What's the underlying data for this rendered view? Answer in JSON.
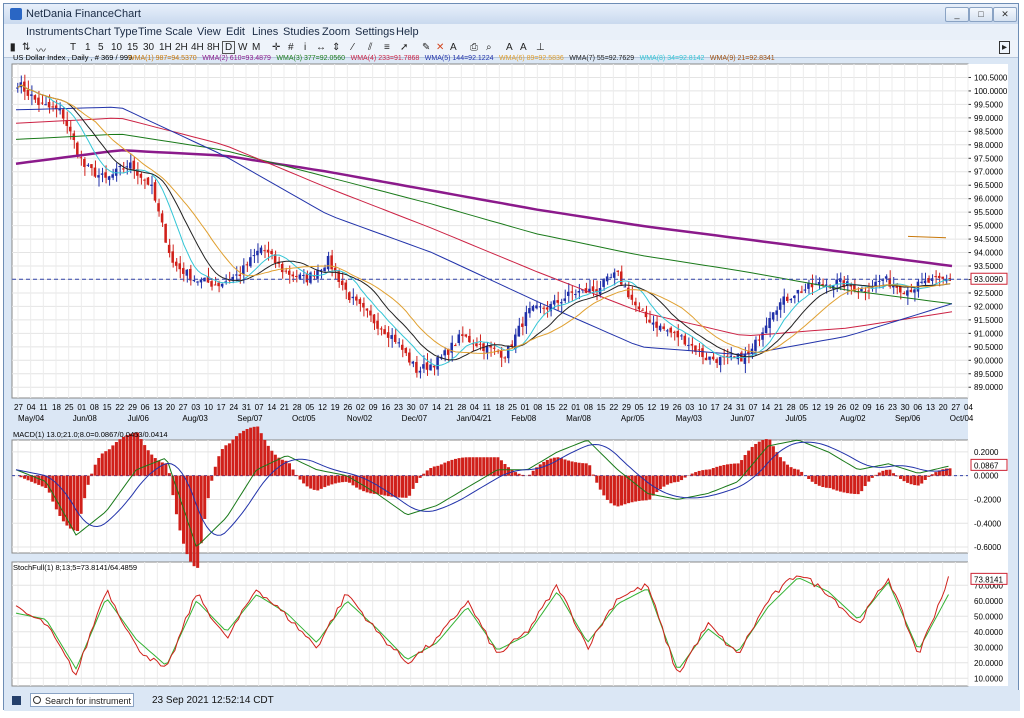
{
  "window": {
    "title": "NetDania FinanceChart",
    "controls": [
      "_",
      "□",
      "✕"
    ]
  },
  "menu": [
    "Instruments",
    "Chart Type",
    "Time Scale",
    "View",
    "Edit",
    "Lines",
    "Studies",
    "Zoom",
    "Settings",
    "Help"
  ],
  "toolbar": {
    "timeframes": [
      "T",
      "1",
      "5",
      "10",
      "15",
      "30",
      "1H",
      "2H",
      "4H",
      "8H",
      "D",
      "W",
      "M"
    ],
    "selected": "D"
  },
  "status": {
    "search_placeholder": "Search for instrument",
    "datetime": "23 Sep 2021 12:52:14 CDT"
  },
  "header": {
    "instrument": "US Dollar Index , Daily , # 369 / 999",
    "indicators": [
      {
        "text": "WMA(1) 987=94.5370",
        "color": "#c8780a"
      },
      {
        "text": "WMA(2) 610=93.4879",
        "color": "#8b1a8b"
      },
      {
        "text": "WMA(3) 377=92.0560",
        "color": "#1a7a1a"
      },
      {
        "text": "WMA(4) 233=91.7868",
        "color": "#cc2244"
      },
      {
        "text": "WMA(5) 144=92.1224",
        "color": "#2233aa"
      },
      {
        "text": "WMA(6) 89=92.5836",
        "color": "#e0a030"
      },
      {
        "text": "WMA(7) 55=92.7629",
        "color": "#222222"
      },
      {
        "text": "WMA(8) 34=92.8142",
        "color": "#33c6d6"
      },
      {
        "text": "WMA(9) 21=92.8341",
        "color": "#a05010"
      }
    ]
  },
  "chart_data": [
    {
      "type": "candlestick",
      "title": "US Dollar Index , Daily",
      "ylim": [
        88.6,
        101.0
      ],
      "y_ticks": [
        "100.5000",
        "100.0000",
        "99.5000",
        "99.0000",
        "98.5000",
        "98.0000",
        "97.5000",
        "97.0000",
        "96.5000",
        "96.0000",
        "95.5000",
        "95.0000",
        "94.5000",
        "94.0000",
        "93.5000",
        "93.0000",
        "92.5000",
        "92.0000",
        "91.5000",
        "91.0000",
        "90.5000",
        "90.0000",
        "89.5000",
        "89.0000"
      ],
      "last_price_label": "93.0090",
      "last_price": 93.009,
      "x_tick_labels": [
        "27",
        "04",
        "11",
        "18",
        "25",
        "01",
        "08",
        "15",
        "22",
        "29",
        "06",
        "13",
        "20",
        "27",
        "03",
        "10",
        "17",
        "24",
        "31",
        "07",
        "14",
        "21",
        "28",
        "05",
        "12",
        "19",
        "26",
        "02",
        "09",
        "16",
        "23",
        "30",
        "07",
        "14",
        "21",
        "28",
        "04",
        "11",
        "18",
        "25",
        "01",
        "08",
        "15",
        "22",
        "01",
        "08",
        "15",
        "22",
        "29",
        "05",
        "12",
        "19",
        "26",
        "03",
        "10",
        "17",
        "24",
        "31",
        "07",
        "14",
        "21",
        "28",
        "05",
        "12",
        "19",
        "26",
        "02",
        "09",
        "16",
        "23",
        "30",
        "06",
        "13",
        "20",
        "27",
        "04"
      ],
      "x_month_labels": [
        "May/04",
        "Jun/08",
        "Jul/06",
        "Aug/03",
        "Sep/07",
        "Oct/05",
        "Nov/02",
        "Dec/07",
        "Jan/04/21",
        "Feb/08",
        "Mar/08",
        "Apr/05",
        "May/03",
        "Jun/07",
        "Jul/05",
        "Aug/02",
        "Sep/06",
        "Oct/04"
      ],
      "close_anchors": [
        100.3,
        99.5,
        99.2,
        97.2,
        96.7,
        97.3,
        96.5,
        93.6,
        93.0,
        92.8,
        93.2,
        94.2,
        93.3,
        93.0,
        93.7,
        92.3,
        91.5,
        90.8,
        89.6,
        90.0,
        90.9,
        90.5,
        90.2,
        91.8,
        92.0,
        92.5,
        92.6,
        93.2,
        91.8,
        91.2,
        90.8,
        90.1,
        90.0,
        90.2,
        91.9,
        92.5,
        92.8,
        92.9,
        92.6,
        93.0,
        92.6,
        92.9,
        93.0
      ],
      "moving_averages": [
        {
          "name": "WMA(1) 987",
          "color": "#c8780a",
          "values": [
            94.6,
            94.55
          ]
        },
        {
          "name": "WMA(2) 610",
          "color": "#8b1a8b",
          "values": [
            97.3,
            97.8,
            97.6,
            97.0,
            96.3,
            95.6,
            95.0,
            94.5,
            94.0,
            93.5
          ]
        },
        {
          "name": "WMA(3) 377",
          "color": "#1a7a1a",
          "values": [
            98.2,
            98.4,
            97.8,
            96.8,
            95.8,
            94.7,
            93.9,
            93.3,
            92.6,
            92.1
          ]
        },
        {
          "name": "WMA(4) 233",
          "color": "#cc2244",
          "values": [
            98.8,
            99.0,
            98.0,
            96.4,
            94.9,
            93.3,
            91.8,
            90.9,
            91.2,
            91.8
          ]
        },
        {
          "name": "WMA(5) 144",
          "color": "#2233aa",
          "values": [
            99.3,
            99.4,
            97.6,
            95.4,
            94.0,
            92.2,
            90.5,
            90.2,
            90.9,
            92.1
          ]
        }
      ]
    },
    {
      "type": "histogram+line",
      "title": "MACD(1) 13.0;21.0;8.0=0.0867/0.0453/0.0414",
      "ylim": [
        -0.65,
        0.3
      ],
      "y_ticks": [
        "0.2000",
        "0.0000",
        "-0.2000",
        "-0.4000",
        "-0.6000"
      ],
      "last_label": "0.0867",
      "macd_anchors": [
        0.05,
        -0.05,
        -0.5,
        -0.3,
        0.05,
        0.15,
        -0.6,
        -0.35,
        0.05,
        0.17,
        0.05,
        0.0,
        -0.15,
        -0.33,
        -0.25,
        -0.1,
        0.05,
        0.05,
        0.2,
        0.3,
        0.05,
        -0.15,
        -0.2,
        -0.15,
        -0.05,
        0.25,
        0.3,
        0.2,
        0.05,
        0.1,
        0.02,
        0.08
      ]
    },
    {
      "type": "line",
      "title": "StochFull(1) 8;13;5=73.8141/64.4859",
      "ylim": [
        5,
        85
      ],
      "y_ticks": [
        "70.0000",
        "60.0000",
        "50.0000",
        "40.0000",
        "30.0000",
        "20.0000",
        "10.0000"
      ],
      "last_label": "73.8141",
      "k_anchors": [
        55,
        45,
        12,
        68,
        30,
        15,
        65,
        35,
        68,
        50,
        30,
        65,
        40,
        20,
        35,
        60,
        25,
        40,
        70,
        30,
        62,
        70,
        12,
        45,
        25,
        60,
        78,
        65,
        45,
        75,
        25,
        74
      ],
      "d_anchors": [
        52,
        48,
        16,
        62,
        35,
        18,
        60,
        40,
        64,
        52,
        33,
        60,
        42,
        22,
        33,
        56,
        28,
        38,
        66,
        33,
        58,
        68,
        15,
        42,
        27,
        56,
        75,
        66,
        48,
        72,
        28,
        64
      ]
    }
  ]
}
